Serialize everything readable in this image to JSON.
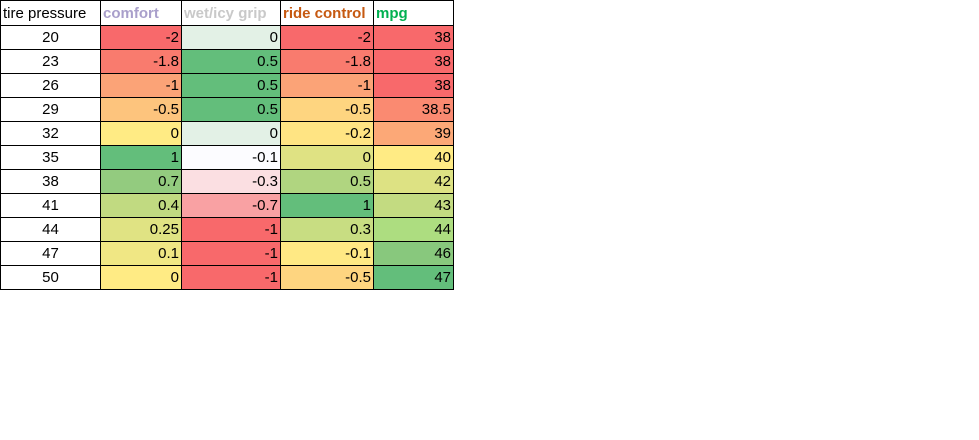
{
  "table": {
    "header": [
      "tire pressure",
      "comfort",
      "wet/icy grip",
      "ride control",
      "mpg"
    ],
    "header_colors": [
      "#000000",
      "#a99fcb",
      "#c9c9c9",
      "#c65911",
      "#00b050"
    ],
    "rows": [
      [
        20,
        -2,
        0,
        -2,
        38
      ],
      [
        23,
        -1.8,
        0.5,
        -1.8,
        38
      ],
      [
        26,
        -1,
        0.5,
        -1,
        38
      ],
      [
        29,
        -0.5,
        0.5,
        -0.5,
        38.5
      ],
      [
        32,
        0,
        0,
        -0.2,
        39
      ],
      [
        35,
        1,
        -0.1,
        0,
        40
      ],
      [
        38,
        0.7,
        -0.3,
        0.5,
        42
      ],
      [
        41,
        0.4,
        -0.7,
        1,
        43
      ],
      [
        44,
        0.25,
        -1,
        0.3,
        44
      ],
      [
        47,
        0.1,
        -1,
        -0.1,
        46
      ],
      [
        50,
        0,
        -1,
        -0.5,
        47
      ]
    ],
    "cell_colors": [
      [
        "#ffffff",
        "#f8696b",
        "#e3f1e6",
        "#f8696b",
        "#f8696b"
      ],
      [
        "#ffffff",
        "#f97b6e",
        "#63be7b",
        "#f97b6e",
        "#f8696b"
      ],
      [
        "#ffffff",
        "#fba377",
        "#63be7b",
        "#fba377",
        "#f8696b"
      ],
      [
        "#ffffff",
        "#fdc47d",
        "#63be7b",
        "#fed580",
        "#fa8a71"
      ],
      [
        "#ffffff",
        "#ffeb84",
        "#e3f1e6",
        "#ffe483",
        "#fca877"
      ],
      [
        "#ffffff",
        "#63be7b",
        "#fcfcff",
        "#dfe283",
        "#ffeb84"
      ],
      [
        "#ffffff",
        "#93cb7f",
        "#fbdfe2",
        "#b0d580",
        "#dde283"
      ],
      [
        "#ffffff",
        "#c1da81",
        "#f9a1a3",
        "#63be7b",
        "#c3db81"
      ],
      [
        "#ffffff",
        "#e0e383",
        "#f8696b",
        "#c8dd82",
        "#addd80"
      ],
      [
        "#ffffff",
        "#f0e784",
        "#f8696b",
        "#ffe984",
        "#88c87d"
      ],
      [
        "#ffffff",
        "#ffeb84",
        "#f8696b",
        "#fed580",
        "#63be7b"
      ]
    ]
  }
}
